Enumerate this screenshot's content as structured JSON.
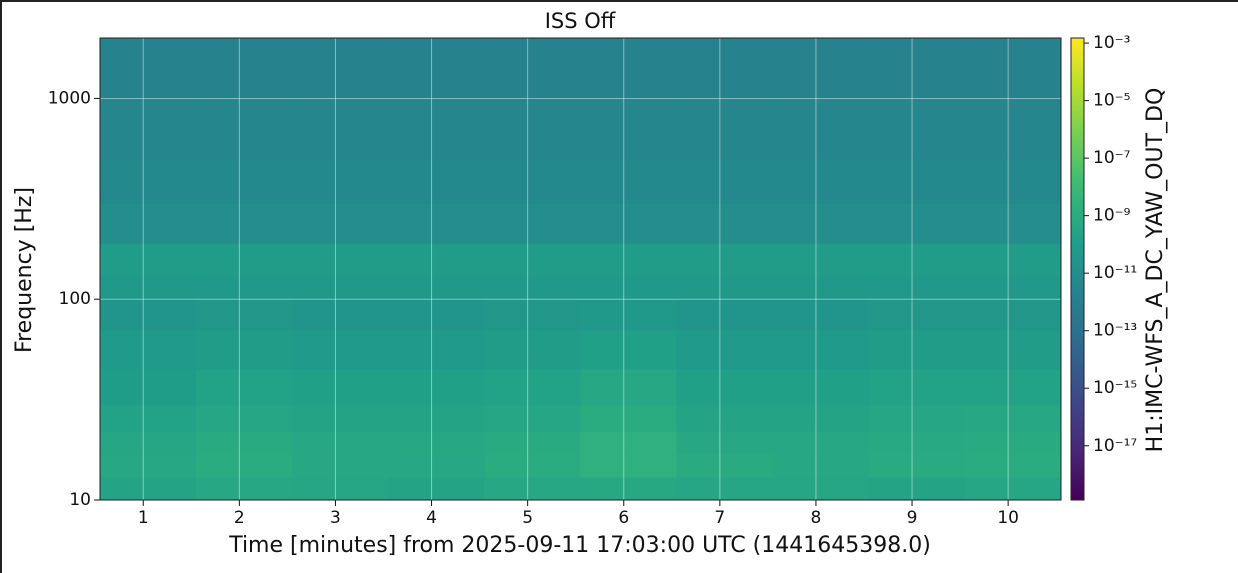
{
  "chart_data": {
    "type": "spectrogram",
    "title": "ISS Off",
    "x_label": "Time [minutes] from 2025-09-11 17:03:00 UTC (1441645398.0)",
    "y_label": "Frequency [Hz]",
    "colorbar_label": "H1:IMC-WFS_A_DC_YAW_OUT_DQ",
    "xlim": [
      0.55,
      10.55
    ],
    "xticks": [
      1,
      2,
      3,
      4,
      5,
      6,
      7,
      8,
      9,
      10
    ],
    "ylim": [
      10,
      2000
    ],
    "yticks": [
      10,
      100,
      1000
    ],
    "yscale": "log",
    "grid": true,
    "clim": [
      1.3e-19,
      0.0015
    ],
    "cscale": "log",
    "colormap": "viridis",
    "cticks": [
      {
        "value": 0.001,
        "label": "10⁻³"
      },
      {
        "value": 1e-05,
        "label": "10⁻⁵"
      },
      {
        "value": 1e-07,
        "label": "10⁻⁷"
      },
      {
        "value": 1e-09,
        "label": "10⁻⁹"
      },
      {
        "value": 1e-11,
        "label": "10⁻¹¹"
      },
      {
        "value": 1e-13,
        "label": "10⁻¹³"
      },
      {
        "value": 1e-15,
        "label": "10⁻¹⁵"
      },
      {
        "value": 1e-17,
        "label": "10⁻¹⁷"
      }
    ],
    "xbins": [
      0.55,
      1.55,
      2.55,
      3.55,
      4.55,
      5.55,
      6.55,
      7.55,
      8.55,
      9.55,
      10.55
    ],
    "ybins": [
      10,
      13,
      17,
      22,
      30,
      45,
      70,
      100,
      130,
      190,
      300,
      500,
      1000,
      2000
    ],
    "z": [
      [
        3e-10,
        5e-10,
        4e-10,
        3e-10,
        5e-10,
        6e-10,
        4e-10,
        4e-10,
        3e-10,
        4e-10
      ],
      [
        5e-10,
        1e-09,
        6e-10,
        5e-10,
        1e-09,
        2e-09,
        8e-10,
        6e-10,
        8e-10,
        1e-09
      ],
      [
        4e-10,
        8e-10,
        5e-10,
        6e-10,
        8e-10,
        2e-09,
        6e-10,
        5e-10,
        7e-10,
        8e-10
      ],
      [
        2e-10,
        4e-10,
        3e-10,
        3e-10,
        4e-10,
        1e-09,
        3e-10,
        3e-10,
        4e-10,
        5e-10
      ],
      [
        1e-10,
        2e-10,
        1.5e-10,
        1.5e-10,
        2e-10,
        5e-10,
        1.5e-10,
        1.5e-10,
        2e-10,
        2e-10
      ],
      [
        6e-11,
        8e-11,
        6e-11,
        6e-11,
        8e-11,
        1.5e-10,
        6e-11,
        6e-11,
        8e-11,
        8e-11
      ],
      [
        3e-11,
        4e-11,
        3e-11,
        3e-11,
        4e-11,
        5e-11,
        3e-11,
        3e-11,
        4e-11,
        4e-11
      ],
      [
        5e-11,
        5e-11,
        5e-11,
        5e-11,
        5e-11,
        5e-11,
        5e-11,
        5e-11,
        5e-11,
        5e-11
      ],
      [
        8e-11,
        8e-11,
        8e-11,
        8e-11,
        8e-11,
        8e-11,
        8e-11,
        8e-11,
        8e-11,
        8e-11
      ],
      [
        1e-11,
        1e-11,
        1e-11,
        1e-11,
        1e-11,
        1e-11,
        1e-11,
        1e-11,
        1e-11,
        1e-11
      ],
      [
        5e-12,
        5e-12,
        5e-12,
        5e-12,
        5e-12,
        5e-12,
        5e-12,
        5e-12,
        5e-12,
        5e-12
      ],
      [
        3e-12,
        3e-12,
        3e-12,
        3e-12,
        3e-12,
        3e-12,
        3e-12,
        3e-12,
        3e-12,
        3e-12
      ],
      [
        2e-12,
        2e-12,
        2e-12,
        2e-12,
        2e-12,
        2e-12,
        2e-12,
        2e-12,
        2e-12,
        2e-12
      ]
    ]
  }
}
